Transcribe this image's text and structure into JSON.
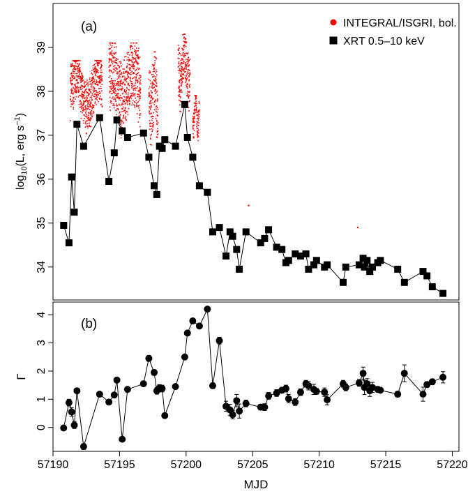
{
  "chart_data": [
    {
      "type": "scatter",
      "panel_label": "(a)",
      "ylabel": "log10(L, erg s−1)",
      "ylabel_parts": {
        "pre": "log",
        "sub": "10",
        "mid": "(L, erg s",
        "sup": "−1",
        "post": ")"
      },
      "xlim": [
        57190.0,
        57220.5
      ],
      "ylim": [
        33.25,
        40.0
      ],
      "x_ticks": [
        57190,
        57195,
        57200,
        57205,
        57210,
        57215,
        57220
      ],
      "y_ticks": [
        34,
        35,
        36,
        37,
        38,
        39
      ],
      "y_tick_labels": [
        "34",
        "35",
        "36",
        "37",
        "38",
        "39"
      ],
      "legend": {
        "position": "top-right",
        "entries": [
          "INTEGRAL/ISGRI, bol.",
          "XRT 0.5–10 keV"
        ]
      },
      "series": [
        {
          "name": "INTEGRAL/ISGRI, bol.",
          "color": "#ff0000",
          "marker": "dot",
          "scan_windows": [
            {
              "x_start": 57191.3,
              "x_end": 57193.7,
              "y_low": 37.3,
              "y_high": 38.7
            },
            {
              "x_start": 57194.2,
              "x_end": 57196.6,
              "y_low": 37.2,
              "y_high": 39.1
            },
            {
              "x_start": 57197.2,
              "x_end": 57197.9,
              "y_low": 36.8,
              "y_high": 38.9
            },
            {
              "x_start": 57199.4,
              "x_end": 57200.3,
              "y_low": 37.8,
              "y_high": 39.3
            },
            {
              "x_start": 57200.5,
              "x_end": 57201.0,
              "y_low": 37.1,
              "y_high": 37.9
            }
          ],
          "outliers": [
            [
              57204.7,
              35.4
            ],
            [
              57212.9,
              34.9
            ]
          ]
        },
        {
          "name": "XRT 0.5–10 keV",
          "color": "#000000",
          "marker": "square",
          "x": [
            57190.8,
            57191.2,
            57191.4,
            57191.6,
            57191.8,
            57192.3,
            57193.5,
            57194.2,
            57194.6,
            57194.8,
            57195.2,
            57195.6,
            57196.8,
            57197.2,
            57197.6,
            57197.8,
            57198.0,
            57198.2,
            57198.4,
            57199.2,
            57199.9,
            57200.1,
            57200.5,
            57201.0,
            57201.6,
            57202.0,
            57202.5,
            57203.0,
            57203.3,
            57203.5,
            57203.8,
            57204.0,
            57204.5,
            57205.6,
            57205.9,
            57206.2,
            57206.8,
            57207.2,
            57207.5,
            57207.7,
            57208.2,
            57208.6,
            57209.0,
            57209.2,
            57209.6,
            57209.8,
            57210.4,
            57210.6,
            57211.8,
            57212.0,
            57213.0,
            57213.3,
            57213.4,
            57213.6,
            57213.8,
            57214.0,
            57214.4,
            57214.6,
            57215.9,
            57216.4,
            57217.8,
            57218.1,
            57218.5,
            57219.3
          ],
          "y": [
            34.95,
            34.55,
            36.05,
            35.25,
            37.25,
            36.75,
            37.4,
            35.95,
            36.6,
            37.35,
            37.1,
            36.95,
            37.05,
            36.5,
            35.85,
            35.65,
            36.75,
            36.7,
            36.9,
            36.75,
            37.7,
            36.95,
            36.5,
            35.85,
            35.7,
            34.8,
            34.9,
            34.25,
            34.8,
            34.7,
            34.4,
            33.95,
            34.8,
            34.55,
            34.65,
            34.85,
            34.45,
            34.4,
            34.1,
            34.15,
            34.3,
            34.25,
            34.3,
            33.95,
            34.05,
            34.15,
            34.0,
            34.05,
            33.65,
            34.0,
            34.05,
            34.2,
            34.0,
            34.15,
            33.9,
            34.0,
            34.1,
            34.15,
            33.95,
            33.65,
            33.9,
            33.8,
            33.55,
            33.4
          ]
        }
      ]
    },
    {
      "type": "scatter",
      "panel_label": "(b)",
      "xlabel": "MJD",
      "ylabel": "Γ",
      "xlim": [
        57190.0,
        57220.5
      ],
      "ylim": [
        -0.85,
        4.45
      ],
      "x_ticks": [
        57190,
        57195,
        57200,
        57205,
        57210,
        57215,
        57220
      ],
      "x_tick_labels": [
        "57190",
        "57195",
        "57200",
        "57205",
        "57210",
        "57215",
        "57220"
      ],
      "y_ticks": [
        0,
        1,
        2,
        3,
        4
      ],
      "y_tick_labels": [
        "0",
        "1",
        "2",
        "3",
        "4"
      ],
      "series": [
        {
          "color": "#000000",
          "marker": "circle",
          "x": [
            57190.8,
            57191.2,
            57191.4,
            57191.6,
            57191.8,
            57192.3,
            57193.5,
            57194.2,
            57194.6,
            57194.8,
            57195.2,
            57195.6,
            57196.8,
            57197.2,
            57197.6,
            57197.8,
            57198.0,
            57198.2,
            57198.4,
            57199.2,
            57199.9,
            57200.1,
            57200.5,
            57201.0,
            57201.6,
            57202.0,
            57202.5,
            57203.0,
            57203.3,
            57203.5,
            57203.8,
            57204.0,
            57204.5,
            57205.6,
            57205.9,
            57206.2,
            57206.8,
            57207.2,
            57207.5,
            57207.7,
            57208.2,
            57208.6,
            57209.0,
            57209.2,
            57209.6,
            57209.8,
            57210.4,
            57210.6,
            57211.8,
            57212.0,
            57213.0,
            57213.3,
            57213.4,
            57213.6,
            57213.8,
            57214.0,
            57214.4,
            57214.6,
            57215.9,
            57216.4,
            57217.8,
            57218.1,
            57218.5,
            57219.3
          ],
          "y": [
            -0.02,
            0.88,
            0.55,
            0.08,
            1.3,
            -0.68,
            1.18,
            0.9,
            1.15,
            1.68,
            -0.42,
            1.35,
            1.55,
            2.45,
            1.95,
            1.3,
            1.4,
            1.38,
            0.42,
            1.45,
            2.5,
            3.35,
            3.78,
            3.6,
            4.2,
            1.48,
            3.08,
            0.75,
            0.62,
            0.45,
            0.95,
            0.58,
            0.85,
            0.72,
            0.72,
            1.12,
            1.22,
            1.32,
            1.38,
            1.02,
            0.9,
            1.25,
            1.55,
            1.48,
            1.35,
            1.28,
            1.25,
            0.98,
            1.55,
            1.42,
            1.58,
            1.92,
            1.42,
            1.55,
            1.3,
            1.42,
            1.35,
            1.32,
            1.18,
            1.92,
            1.18,
            1.52,
            1.62,
            1.78
          ],
          "yerr": [
            0.05,
            0.12,
            0.15,
            0.12,
            0.08,
            0.1,
            0.05,
            0.08,
            0.08,
            0.08,
            0.08,
            0.08,
            0.06,
            0.1,
            0.1,
            0.12,
            0.12,
            0.12,
            0.08,
            0.06,
            0.08,
            0.08,
            0.08,
            0.08,
            0.06,
            0.1,
            0.12,
            0.18,
            0.2,
            0.15,
            0.22,
            0.25,
            0.12,
            0.1,
            0.12,
            0.12,
            0.12,
            0.1,
            0.12,
            0.15,
            0.12,
            0.12,
            0.12,
            0.15,
            0.18,
            0.1,
            0.15,
            0.18,
            0.12,
            0.12,
            0.12,
            0.22,
            0.25,
            0.18,
            0.2,
            0.18,
            0.1,
            0.08,
            0.1,
            0.3,
            0.25,
            0.1,
            0.1,
            0.2
          ]
        }
      ]
    }
  ]
}
